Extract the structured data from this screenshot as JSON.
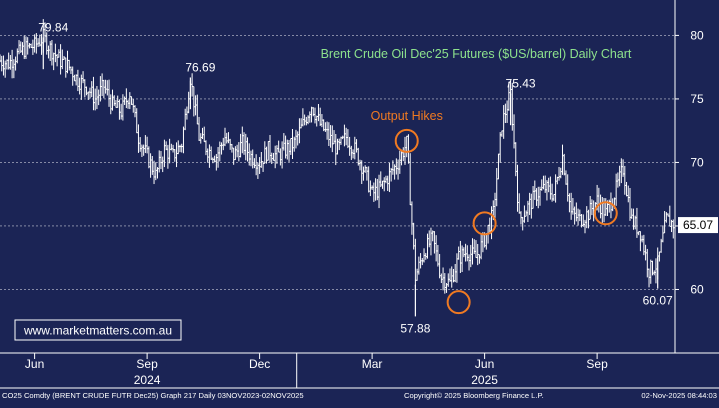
{
  "chart_data": {
    "type": "line",
    "subtype": "ohlc-bars",
    "title": "Brent Crude Oil Dec'25 Futures ($US/barrel) Daily Chart",
    "watermark": "www.marketmatters.com.au",
    "last_price": "65.07",
    "ylim": [
      55,
      82
    ],
    "y_ticks": [
      60,
      65,
      70,
      75,
      80
    ],
    "x_ticks": [
      {
        "label": "Jun",
        "date": "2024-06-03"
      },
      {
        "label": "Sep",
        "date": "2024-09-02"
      },
      {
        "label": "Dec",
        "date": "2024-12-02"
      },
      {
        "label": "Mar",
        "date": "2025-03-03"
      },
      {
        "label": "Jun",
        "date": "2025-06-02"
      },
      {
        "label": "Sep",
        "date": "2025-09-01"
      }
    ],
    "year_labels": [
      {
        "label": "2024",
        "date": "2024-09-02"
      },
      {
        "label": "2025",
        "date": "2025-06-02"
      }
    ],
    "year_separators": [
      "2025-01-01"
    ],
    "x_range": [
      "2024-05-06",
      "2025-11-03"
    ],
    "series": [
      {
        "values": [
          {
            "x": "2024-05-06",
            "y": 78.0
          },
          {
            "x": "2024-05-13",
            "y": 77.8
          },
          {
            "x": "2024-05-20",
            "y": 78.5
          },
          {
            "x": "2024-05-27",
            "y": 79.0
          },
          {
            "x": "2024-06-03",
            "y": 79.2
          },
          {
            "x": "2024-06-10",
            "y": 79.84
          },
          {
            "x": "2024-06-17",
            "y": 78.8
          },
          {
            "x": "2024-06-24",
            "y": 78.0
          },
          {
            "x": "2024-07-01",
            "y": 77.5
          },
          {
            "x": "2024-07-08",
            "y": 76.5
          },
          {
            "x": "2024-07-15",
            "y": 76.0
          },
          {
            "x": "2024-07-22",
            "y": 75.0
          },
          {
            "x": "2024-07-29",
            "y": 76.0
          },
          {
            "x": "2024-08-05",
            "y": 74.5
          },
          {
            "x": "2024-08-12",
            "y": 74.0
          },
          {
            "x": "2024-08-19",
            "y": 75.5
          },
          {
            "x": "2024-08-26",
            "y": 72.0
          },
          {
            "x": "2024-09-02",
            "y": 70.5
          },
          {
            "x": "2024-09-09",
            "y": 69.0
          },
          {
            "x": "2024-09-16",
            "y": 71.0
          },
          {
            "x": "2024-09-23",
            "y": 70.5
          },
          {
            "x": "2024-09-30",
            "y": 71.5
          },
          {
            "x": "2024-10-07",
            "y": 76.69
          },
          {
            "x": "2024-10-14",
            "y": 72.0
          },
          {
            "x": "2024-10-21",
            "y": 71.0
          },
          {
            "x": "2024-10-28",
            "y": 70.5
          },
          {
            "x": "2024-11-04",
            "y": 72.0
          },
          {
            "x": "2024-11-11",
            "y": 70.5
          },
          {
            "x": "2024-11-18",
            "y": 71.5
          },
          {
            "x": "2024-11-25",
            "y": 70.5
          },
          {
            "x": "2024-12-02",
            "y": 70.0
          },
          {
            "x": "2024-12-09",
            "y": 71.0
          },
          {
            "x": "2024-12-16",
            "y": 70.5
          },
          {
            "x": "2024-12-23",
            "y": 71.0
          },
          {
            "x": "2024-12-30",
            "y": 71.5
          },
          {
            "x": "2025-01-06",
            "y": 73.0
          },
          {
            "x": "2025-01-13",
            "y": 74.5
          },
          {
            "x": "2025-01-20",
            "y": 73.0
          },
          {
            "x": "2025-01-27",
            "y": 72.0
          },
          {
            "x": "2025-02-03",
            "y": 71.0
          },
          {
            "x": "2025-02-10",
            "y": 72.0
          },
          {
            "x": "2025-02-17",
            "y": 71.0
          },
          {
            "x": "2025-02-24",
            "y": 69.5
          },
          {
            "x": "2025-03-03",
            "y": 67.5
          },
          {
            "x": "2025-03-10",
            "y": 68.0
          },
          {
            "x": "2025-03-17",
            "y": 69.0
          },
          {
            "x": "2025-03-24",
            "y": 70.0
          },
          {
            "x": "2025-03-31",
            "y": 71.5
          },
          {
            "x": "2025-04-07",
            "y": 61.0
          },
          {
            "x": "2025-04-14",
            "y": 63.0
          },
          {
            "x": "2025-04-21",
            "y": 64.0
          },
          {
            "x": "2025-04-28",
            "y": 61.0
          },
          {
            "x": "2025-05-05",
            "y": 60.5
          },
          {
            "x": "2025-05-12",
            "y": 62.5
          },
          {
            "x": "2025-05-19",
            "y": 63.0
          },
          {
            "x": "2025-05-26",
            "y": 62.5
          },
          {
            "x": "2025-06-02",
            "y": 64.0
          },
          {
            "x": "2025-06-09",
            "y": 66.0
          },
          {
            "x": "2025-06-16",
            "y": 73.0
          },
          {
            "x": "2025-06-23",
            "y": 75.43
          },
          {
            "x": "2025-06-30",
            "y": 65.5
          },
          {
            "x": "2025-07-07",
            "y": 66.5
          },
          {
            "x": "2025-07-14",
            "y": 67.5
          },
          {
            "x": "2025-07-21",
            "y": 68.0
          },
          {
            "x": "2025-07-28",
            "y": 67.5
          },
          {
            "x": "2025-08-04",
            "y": 70.5
          },
          {
            "x": "2025-08-11",
            "y": 66.0
          },
          {
            "x": "2025-08-18",
            "y": 65.5
          },
          {
            "x": "2025-08-25",
            "y": 66.0
          },
          {
            "x": "2025-09-01",
            "y": 67.0
          },
          {
            "x": "2025-09-08",
            "y": 66.0
          },
          {
            "x": "2025-09-15",
            "y": 67.5
          },
          {
            "x": "2025-09-22",
            "y": 69.5
          },
          {
            "x": "2025-09-29",
            "y": 65.5
          },
          {
            "x": "2025-10-06",
            "y": 64.5
          },
          {
            "x": "2025-10-13",
            "y": 61.5
          },
          {
            "x": "2025-10-20",
            "y": 62.0
          },
          {
            "x": "2025-10-27",
            "y": 65.5
          },
          {
            "x": "2025-11-03",
            "y": 65.07
          }
        ]
      }
    ],
    "annotations": [
      {
        "text": "79.84",
        "x": "2024-06-10",
        "y": 79.84
      },
      {
        "text": "76.69",
        "x": "2024-10-07",
        "y": 76.69
      },
      {
        "text": "75.43",
        "x": "2025-06-23",
        "y": 75.43
      },
      {
        "text": "57.88",
        "x": "2025-04-07",
        "y": 57.88
      },
      {
        "text": "60.07",
        "x": "2025-10-20",
        "y": 60.07
      },
      {
        "text": "Output Hikes",
        "x": "2025-03-31",
        "y": 71.7
      }
    ],
    "circles": [
      {
        "x": "2025-03-31",
        "y": 71.7
      },
      {
        "x": "2025-05-12",
        "y": 59.0
      },
      {
        "x": "2025-06-02",
        "y": 65.2
      },
      {
        "x": "2025-09-08",
        "y": 66.0
      }
    ],
    "grid": true,
    "grid_style": "dashed-horizontal"
  },
  "footer": {
    "left": "CO25 Comdty (BRENT CRUDE FUTR  Dec25) Graph 217 Daily 03NOV2023-02NOV2025",
    "center": "Copyright© 2025 Bloomberg Finance L.P.",
    "right": "02-Nov-2025 08:44:03"
  },
  "colors": {
    "background": "#1b2455",
    "bars": "#ffffff",
    "title": "#8de28d",
    "annotation_orange": "#f07a22",
    "axis_text": "#ffffff",
    "grid": "#ffffff",
    "price_box": "#ffffff",
    "watermark_text": "#ffffff"
  }
}
